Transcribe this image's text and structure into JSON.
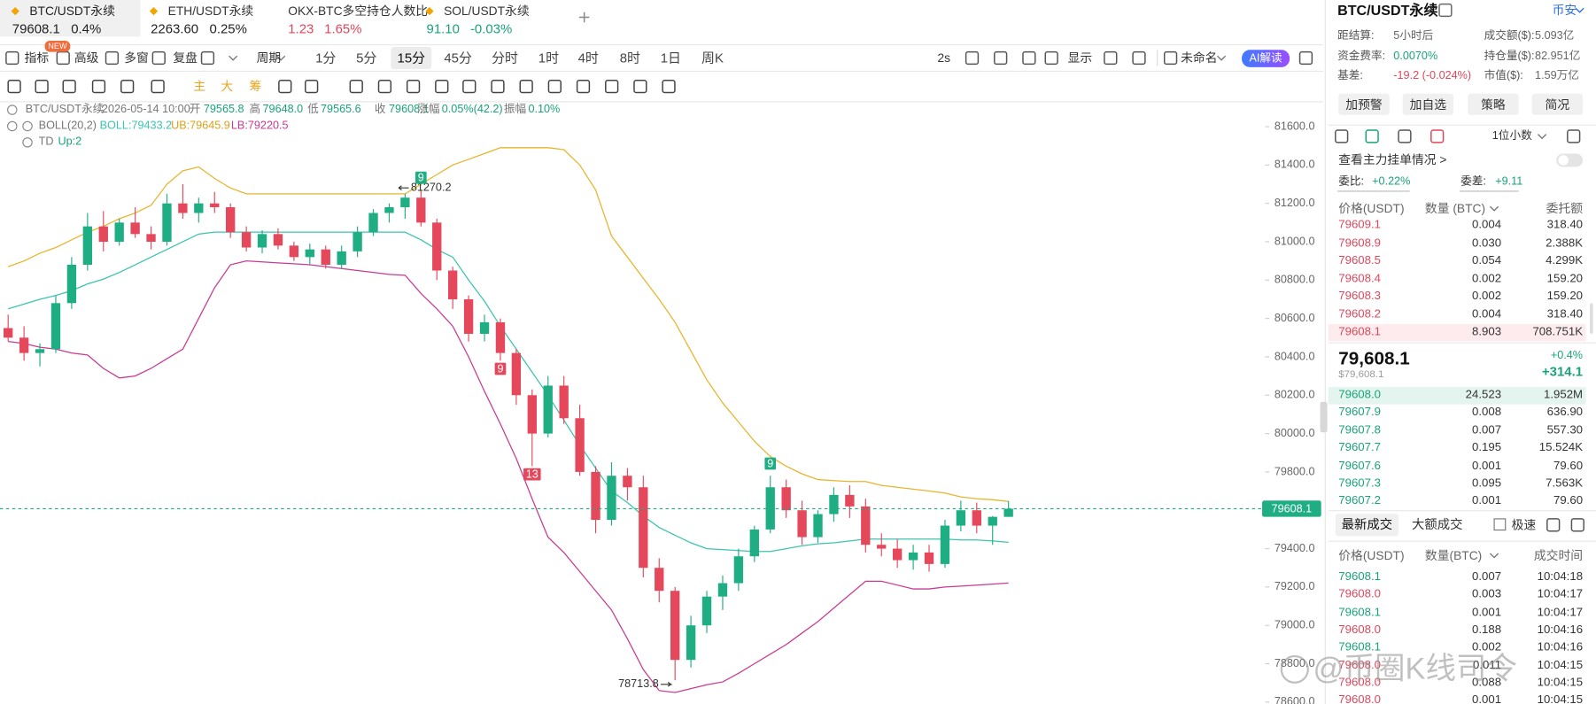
{
  "tabs": [
    {
      "symbol": "BTC/USDT永续",
      "price": "79608.1",
      "change": "0.4%",
      "color": "#222"
    },
    {
      "symbol": "ETH/USDT永续",
      "price": "2263.60",
      "change": "0.25%",
      "color": "#222"
    },
    {
      "symbol": "OKX-BTC多空持仓人数比",
      "price": "1.23",
      "change": "1.65%",
      "color": "#e0475c"
    },
    {
      "symbol": "SOL/USDT永续",
      "price": "91.10",
      "change": "-0.03%",
      "color": "#1aa37a"
    }
  ],
  "toolbar": {
    "indicators": "指标",
    "new_badge": "NEW",
    "advanced": "高级",
    "multi": "多窗",
    "replay": "复盘",
    "period": "周期",
    "intervals": [
      "1分",
      "5分",
      "15分",
      "45分",
      "分时",
      "1时",
      "4时",
      "8时",
      "1日",
      "周K"
    ],
    "selected": 2,
    "refresh": "2s",
    "display": "显示",
    "layout_name": "未命名",
    "ai": "AI解读"
  },
  "drawing_tools": [
    "主",
    "大",
    "筹"
  ],
  "legend": {
    "symbol": "BTC/USDT永续",
    "time": "2026-05-14 10:00",
    "fields": [
      {
        "label": "开",
        "value": "79565.8"
      },
      {
        "label": "高",
        "value": "79648.0"
      },
      {
        "label": "低",
        "value": "79565.6"
      },
      {
        "label": "收",
        "value": "79608.1"
      },
      {
        "label": "涨幅",
        "value": "0.05%(42.2)"
      },
      {
        "label": "振幅",
        "value": "0.10%"
      }
    ],
    "indicator": "BOLL(20,2)",
    "boll": "BOLL:79433.2",
    "ub": "UB:79645.9",
    "lb": "LB:79220.5",
    "td": "TD",
    "td_value": "Up:2"
  },
  "chart": {
    "type": "candlestick",
    "ylim": [
      78590,
      81730
    ],
    "yticks": [
      {
        "value": 81600,
        "label": "81600.0"
      },
      {
        "value": 81400,
        "label": "81400.0"
      },
      {
        "value": 81200,
        "label": "81200.0"
      },
      {
        "value": 81000,
        "label": "81000.0"
      },
      {
        "value": 80800,
        "label": "80800.0"
      },
      {
        "value": 80600,
        "label": "80600.0"
      },
      {
        "value": 80400,
        "label": "80400.0"
      },
      {
        "value": 80200,
        "label": "80200.0"
      },
      {
        "value": 80000,
        "label": "80000.0"
      },
      {
        "value": 79800,
        "label": "79800.0"
      },
      {
        "value": 79600,
        "label": "79600.0"
      },
      {
        "value": 79400,
        "label": "79400.0"
      },
      {
        "value": 79200,
        "label": "79200.0"
      },
      {
        "value": 79000,
        "label": "79000.0"
      },
      {
        "value": 78800,
        "label": "78800.0"
      },
      {
        "value": 78600,
        "label": "78600.0"
      }
    ],
    "open": [
      80550,
      80500,
      80420,
      80440,
      80680,
      80880,
      81080,
      81000,
      81100,
      81040,
      81000,
      81200,
      81150,
      81200,
      81180,
      81050,
      80970,
      81040,
      80980,
      80920,
      80960,
      80880,
      80950,
      81050,
      81150,
      81180,
      81230,
      81100,
      80850,
      80700,
      80520,
      80580,
      80420,
      80200,
      80000,
      80250,
      80080,
      79800,
      79550,
      79780,
      79720,
      79300,
      79180,
      78820,
      79000,
      79150,
      79220,
      79360,
      79500,
      79720,
      79600,
      79460,
      79580,
      79680,
      79620,
      79420,
      79400,
      79340,
      79380,
      79320,
      79520,
      79600,
      79520,
      79565.8
    ],
    "high": [
      80620,
      80560,
      80470,
      80720,
      80920,
      81150,
      81160,
      81120,
      81180,
      81080,
      81250,
      81300,
      81230,
      81260,
      81200,
      81080,
      81060,
      81070,
      81000,
      80990,
      80980,
      80980,
      81080,
      81170,
      81200,
      81250,
      81270.2,
      81120,
      80870,
      80720,
      80620,
      80600,
      80440,
      80230,
      80300,
      80300,
      80150,
      79830,
      79850,
      79820,
      79780,
      79350,
      79200,
      79050,
      79180,
      79260,
      79400,
      79520,
      79780,
      79760,
      79650,
      79600,
      79720,
      79730,
      79660,
      79480,
      79450,
      79420,
      79420,
      79550,
      79650,
      79640,
      79570,
      79648.0
    ],
    "low": [
      80480,
      80380,
      80350,
      80420,
      80650,
      80850,
      80950,
      80980,
      81020,
      80960,
      80980,
      81120,
      81100,
      81150,
      81020,
      80950,
      80940,
      80960,
      80900,
      80880,
      80860,
      80860,
      80920,
      81030,
      81100,
      81120,
      81080,
      80800,
      80650,
      80480,
      80480,
      80380,
      80150,
      79830,
      79980,
      80050,
      79780,
      79480,
      79520,
      79650,
      79250,
      79120,
      78713.8,
      78780,
      78960,
      79080,
      79180,
      79330,
      79480,
      79560,
      79420,
      79430,
      79540,
      79560,
      79380,
      79360,
      79300,
      79290,
      79280,
      79300,
      79490,
      79480,
      79420,
      79565.6
    ],
    "close": [
      80500,
      80420,
      80440,
      80680,
      80880,
      81080,
      81000,
      81100,
      81040,
      81000,
      81200,
      81150,
      81200,
      81180,
      81050,
      80970,
      81040,
      80980,
      80920,
      80960,
      80880,
      80950,
      81050,
      81150,
      81180,
      81230,
      81100,
      80850,
      80700,
      80520,
      80580,
      80420,
      80200,
      80000,
      80250,
      80080,
      79800,
      79550,
      79780,
      79720,
      79300,
      79180,
      78820,
      79000,
      79150,
      79220,
      79360,
      79500,
      79720,
      79600,
      79460,
      79580,
      79680,
      79620,
      79420,
      79400,
      79340,
      79380,
      79320,
      79520,
      79600,
      79520,
      79565.9,
      79608.1
    ],
    "boll_mid": [
      80650,
      80675,
      80700,
      80720,
      80745,
      80780,
      80805,
      80840,
      80880,
      80920,
      80960,
      81000,
      81040,
      81050,
      81050,
      81050,
      81050,
      81050,
      81050,
      81050,
      81050,
      81050,
      81050,
      81050,
      81050,
      81050,
      81010,
      80960,
      80920,
      80800,
      80690,
      80560,
      80440,
      80320,
      80200,
      80070,
      79940,
      79820,
      79700,
      79640,
      79570,
      79510,
      79470,
      79430,
      79400,
      79395,
      79390,
      79385,
      79385,
      79400,
      79415,
      79425,
      79430,
      79440,
      79450,
      79450,
      79450,
      79450,
      79450,
      79450,
      79445,
      79445,
      79440,
      79433.2
    ],
    "boll_upper": [
      80870,
      80900,
      80940,
      80970,
      81010,
      81050,
      81080,
      81120,
      81150,
      81190,
      81300,
      81370,
      81390,
      81330,
      81280,
      81250,
      81250,
      81250,
      81250,
      81250,
      81250,
      81250,
      81250,
      81250,
      81250,
      81250,
      81300,
      81350,
      81400,
      81430,
      81460,
      81490,
      81490,
      81490,
      81490,
      81480,
      81400,
      81270,
      81030,
      80920,
      80810,
      80700,
      80580,
      80430,
      80280,
      80160,
      80060,
      79960,
      79880,
      79830,
      79790,
      79760,
      79755,
      79750,
      79750,
      79730,
      79720,
      79710,
      79700,
      79690,
      79670,
      79660,
      79655,
      79645.9
    ],
    "boll_lower": [
      80480,
      80470,
      80450,
      80440,
      80420,
      80410,
      80340,
      80290,
      80300,
      80340,
      80390,
      80440,
      80600,
      80760,
      80880,
      80900,
      80895,
      80890,
      80885,
      80880,
      80870,
      80860,
      80850,
      80840,
      80830,
      80825,
      80730,
      80650,
      80560,
      80400,
      80220,
      80050,
      79870,
      79660,
      79460,
      79380,
      79280,
      79180,
      79080,
      78930,
      78770,
      78660,
      78650,
      78670,
      78690,
      78705,
      78750,
      78800,
      78850,
      78900,
      78960,
      79020,
      79090,
      79160,
      79230,
      79230,
      79210,
      79190,
      79190,
      79200,
      79205,
      79210,
      79215,
      79220.5
    ],
    "up_color": "#1fae84",
    "down_color": "#e5475b",
    "mid_color": "#3cc4b0",
    "upper_color": "#e6b52c",
    "lower_color": "#c93b90",
    "td_marks": [
      {
        "label": 9,
        "color": "#1fae84"
      },
      {
        "label": 9,
        "color": "#e5475b"
      },
      {
        "label": 13,
        "color": "#e5475b"
      },
      {
        "label": 9,
        "color": "#1fae84"
      }
    ]
  },
  "panel": {
    "symbol": "BTC/USDT永续",
    "exchange": "币安",
    "stats": [
      {
        "label": "距结算:",
        "value": "5小时后",
        "color": "#666"
      },
      {
        "label": "成交额($):",
        "value": "5.093亿",
        "color": "#666"
      },
      {
        "label": "资金费率:",
        "value": "0.0070%",
        "color": "#1aa37a"
      },
      {
        "label": "持仓量($):",
        "value": "82.951亿",
        "color": "#666"
      },
      {
        "label": "基差:",
        "value": "-19.2 (-0.024%)",
        "color": "#e0475c"
      },
      {
        "label": "市值($):",
        "value": "1.59万亿",
        "color": "#666"
      }
    ],
    "buttons": [
      "加预警",
      "加自选",
      "策略",
      "简况"
    ],
    "precision": "1位小数",
    "big_orders": "查看主力挂单情况 >",
    "ratio_label": "委比:",
    "ratio": "+0.22%",
    "diff_label": "委差:",
    "diff": "+9.11",
    "book_header": [
      "价格(USDT)",
      "数量 (BTC)",
      "委托额"
    ],
    "asks": [
      [
        "79609.1",
        "0.004",
        "318.40"
      ],
      [
        "79608.9",
        "0.030",
        "2.388K"
      ],
      [
        "79608.5",
        "0.054",
        "4.299K"
      ],
      [
        "79608.4",
        "0.002",
        "159.20"
      ],
      [
        "79608.3",
        "0.002",
        "159.20"
      ],
      [
        "79608.2",
        "0.004",
        "318.40"
      ],
      [
        "79608.1",
        "8.903",
        "708.751K"
      ]
    ],
    "last": "79,608.1",
    "last_usd": "$79,608.1",
    "change_pct": "+0.4%",
    "change": "+314.1",
    "bids": [
      [
        "79608.0",
        "24.523",
        "1.952M"
      ],
      [
        "79607.9",
        "0.008",
        "636.90"
      ],
      [
        "79607.8",
        "0.007",
        "557.30"
      ],
      [
        "79607.7",
        "0.195",
        "15.524K"
      ],
      [
        "79607.6",
        "0.001",
        "79.60"
      ],
      [
        "79607.3",
        "0.095",
        "7.563K"
      ],
      [
        "79607.2",
        "0.001",
        "79.60"
      ]
    ],
    "trade_tabs": [
      "最新成交",
      "大额成交"
    ],
    "fast": "极速",
    "trade_header": [
      "价格(USDT)",
      "数量(BTC)",
      "成交时间"
    ],
    "trades": [
      {
        "price": "79608.1",
        "qty": "0.007",
        "time": "10:04:18",
        "color": "#1aa37a"
      },
      {
        "price": "79608.0",
        "qty": "0.003",
        "time": "10:04:17",
        "color": "#e0475c"
      },
      {
        "price": "79608.1",
        "qty": "0.001",
        "time": "10:04:17",
        "color": "#1aa37a"
      },
      {
        "price": "79608.0",
        "qty": "0.188",
        "time": "10:04:16",
        "color": "#e0475c"
      },
      {
        "price": "79608.1",
        "qty": "0.002",
        "time": "10:04:16",
        "color": "#1aa37a"
      },
      {
        "price": "79608.0",
        "qty": "0.011",
        "time": "10:04:15",
        "color": "#e0475c"
      },
      {
        "price": "79608.0",
        "qty": "0.088",
        "time": "10:04:15",
        "color": "#e0475c"
      },
      {
        "price": "79608.0",
        "qty": "0.001",
        "time": "10:04:15",
        "color": "#e0475c"
      }
    ],
    "ask_color": "#e0475c",
    "bid_color": "#1aa37a"
  },
  "watermark": "@币圈K线司令"
}
